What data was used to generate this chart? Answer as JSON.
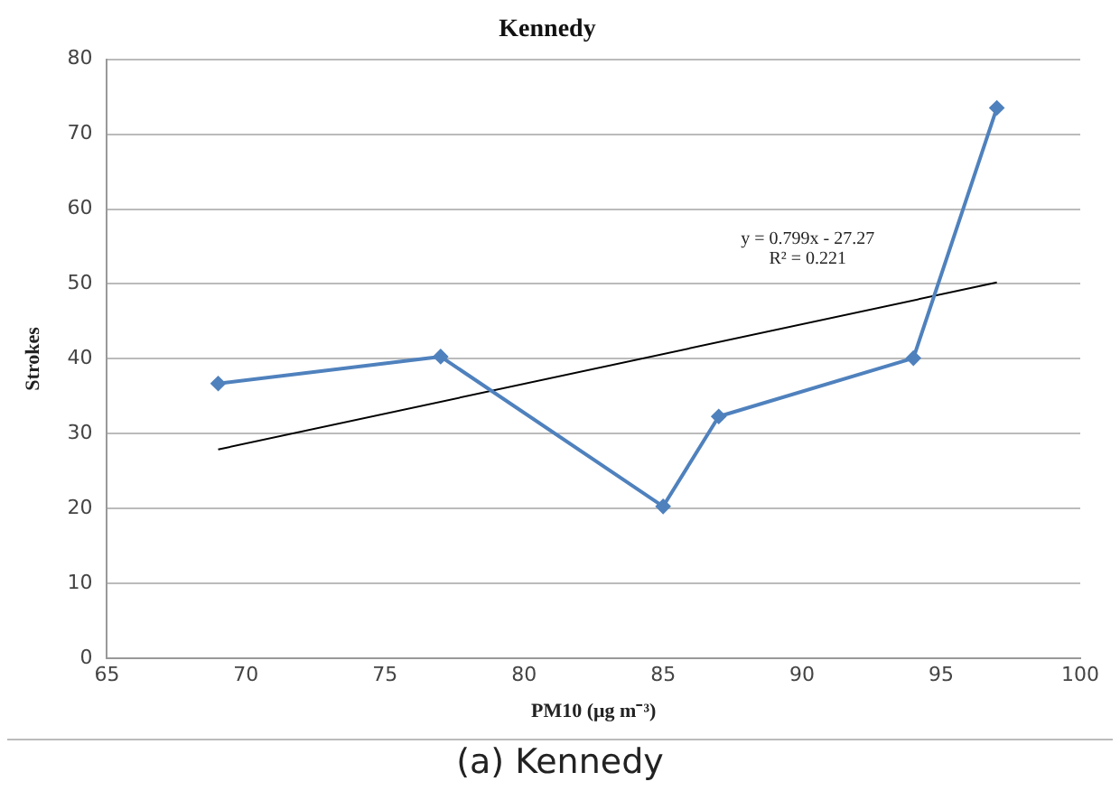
{
  "chart_data": {
    "type": "line",
    "title": "Kennedy",
    "xlabel": "PM10 (μg m⁻³)",
    "ylabel": "Strokes",
    "x": [
      69,
      77,
      85,
      87,
      94,
      97
    ],
    "series": [
      {
        "color": "#4f81bd",
        "values": [
          36.7,
          40.3,
          20.3,
          32.3,
          40.1,
          73.5
        ]
      },
      {
        "type": "line",
        "color": "#000000",
        "marker": "none",
        "x": [
          69,
          97
        ],
        "values": [
          27.9,
          50.2
        ]
      }
    ],
    "xlim": [
      65,
      100
    ],
    "xticks": [
      65,
      70,
      75,
      80,
      85,
      90,
      95,
      100
    ],
    "ylim": [
      0,
      80
    ],
    "yticks": [
      0,
      10,
      20,
      30,
      40,
      50,
      60,
      70,
      80
    ],
    "grid": "y",
    "legend": false,
    "marker": "diamond",
    "annotations": [
      "y = 0.799x - 27.27",
      "R² = 0.221",
      "(a) Kennedy"
    ]
  }
}
